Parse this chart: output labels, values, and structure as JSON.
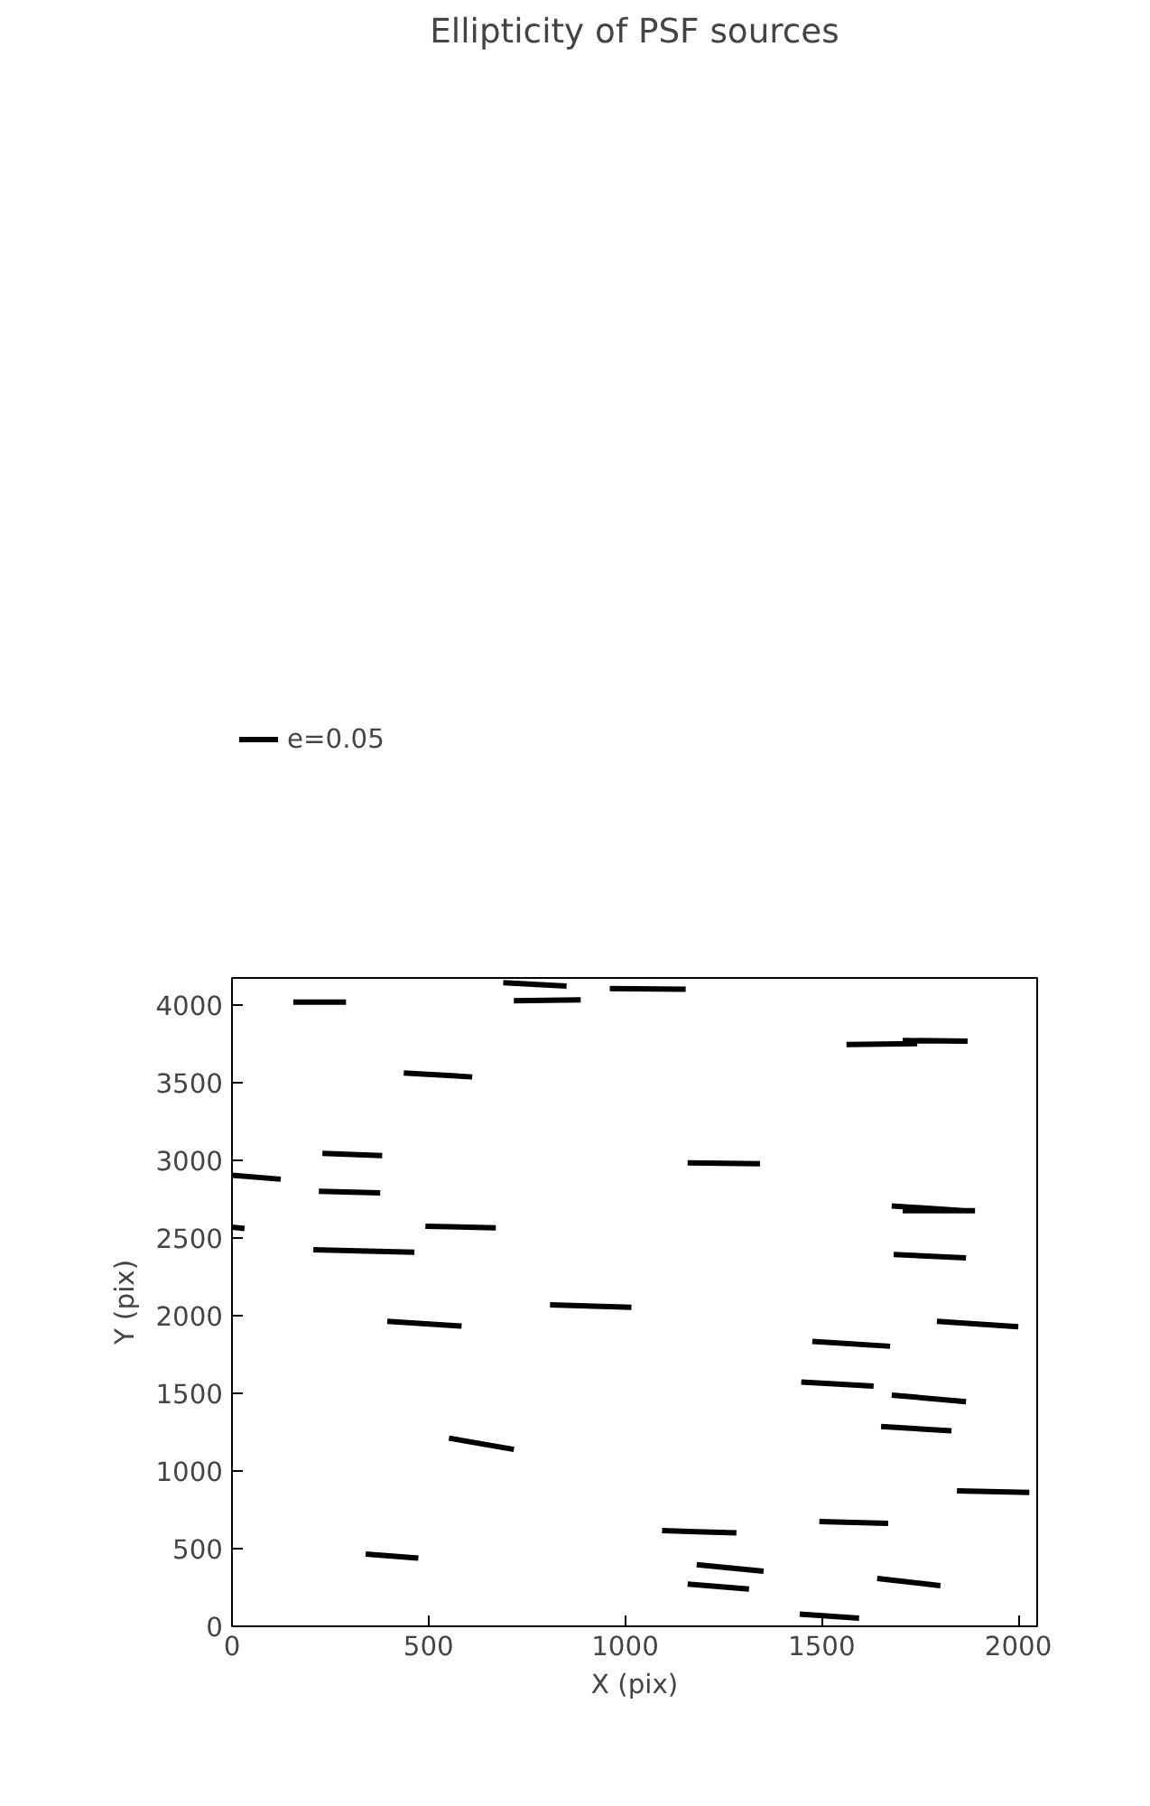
{
  "chart_data": {
    "type": "line",
    "title": "Ellipticity of PSF sources",
    "xlabel": "X (pix)",
    "ylabel": "Y (pix)",
    "xlim": [
      0,
      2048
    ],
    "ylim": [
      0,
      4172
    ],
    "xticks": [
      0,
      500,
      1000,
      1500,
      2000
    ],
    "yticks": [
      0,
      500,
      1000,
      1500,
      2000,
      2500,
      3000,
      3500,
      4000
    ],
    "grid": false,
    "legend": "top left",
    "series": [
      {
        "name": "e=0.05",
        "color": "#000000",
        "x": [
          690,
          851,
          null,
          156,
          290,
          null,
          717,
          887,
          null,
          961,
          1154,
          null,
          1706,
          1871,
          null,
          1563,
          1743,
          null,
          437,
          611,
          null,
          230,
          382,
          null,
          0,
          124,
          null,
          1159,
          1343,
          null,
          221,
          377,
          null,
          1678,
          1862,
          null,
          1706,
          1890,
          null,
          0,
          32,
          null,
          492,
          671,
          null,
          207,
          464,
          null,
          1683,
          1867,
          null,
          809,
          1016,
          null,
          395,
          584,
          null,
          1793,
          2000,
          null,
          1476,
          1674,
          null,
          1448,
          1632,
          null,
          1678,
          1867,
          null,
          1651,
          1830,
          null,
          552,
          717,
          null,
          1844,
          2028,
          null,
          1494,
          1669,
          null,
          1094,
          1283,
          null,
          340,
          474,
          null,
          1182,
          1352,
          null,
          1641,
          1802,
          null,
          1159,
          1315,
          null,
          1444,
          1595
        ],
        "values": [
          4141,
          4120,
          null,
          4016,
          4016,
          null,
          4026,
          4031,
          null,
          4104,
          4099,
          null,
          3770,
          3765,
          null,
          3744,
          3749,
          null,
          3561,
          3535,
          null,
          3044,
          3029,
          null,
          2903,
          2877,
          null,
          2982,
          2977,
          null,
          2799,
          2789,
          null,
          2705,
          2674,
          null,
          2674,
          2674,
          null,
          2569,
          2559,
          null,
          2574,
          2564,
          null,
          2423,
          2407,
          null,
          2392,
          2371,
          null,
          2068,
          2052,
          null,
          1963,
          1932,
          null,
          1963,
          1927,
          null,
          1833,
          1802,
          null,
          1572,
          1546,
          null,
          1488,
          1446,
          null,
          1285,
          1258,
          null,
          1211,
          1138,
          null,
          872,
          862,
          null,
          674,
          663,
          null,
          616,
          601,
          null,
          465,
          439,
          null,
          397,
          355,
          null,
          308,
          261,
          null,
          272,
          240,
          null,
          78,
          52
        ]
      }
    ]
  }
}
